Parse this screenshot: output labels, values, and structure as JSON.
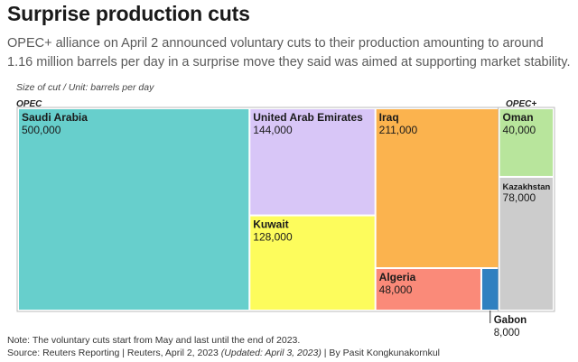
{
  "title": "Surprise production cuts",
  "subtitle": "OPEC+ alliance on April 2 announced voluntary cuts to their production amounting to around 1.16 million barrels per day in a surprise move they said was aimed at supporting market stability.",
  "unit_label": "Size of cut / Unit: barrels per day",
  "groups": {
    "opec": "OPEC",
    "opec_plus": "OPEC+"
  },
  "footer": {
    "note": "Note: The voluntary cuts start from May and last until the end of 2023.",
    "source_main": "Source: Reuters Reporting | Reuters, April 2, 2023 ",
    "source_updated": "(Updated: April 3, 2023)",
    "source_byline": " | By Pasit Kongkunakornkul"
  },
  "chart_data": {
    "type": "treemap",
    "title": "Surprise production cuts",
    "unit": "barrels per day",
    "groups": [
      {
        "name": "OPEC",
        "items": [
          {
            "name": "Saudi Arabia",
            "value": 500000,
            "label": "500,000",
            "color": "#67cfcc"
          },
          {
            "name": "United Arab Emirates",
            "value": 144000,
            "label": "144,000",
            "color": "#d8c6f7"
          },
          {
            "name": "Kuwait",
            "value": 128000,
            "label": "128,000",
            "color": "#fdfc5c"
          },
          {
            "name": "Iraq",
            "value": 211000,
            "label": "211,000",
            "color": "#fbb34e"
          },
          {
            "name": "Algeria",
            "value": 48000,
            "label": "48,000",
            "color": "#fa8a79"
          },
          {
            "name": "Gabon",
            "value": 8000,
            "label": "8,000",
            "color": "#3080c0"
          }
        ]
      },
      {
        "name": "OPEC+",
        "items": [
          {
            "name": "Oman",
            "value": 40000,
            "label": "40,000",
            "color": "#b8e59c"
          },
          {
            "name": "Kazakhstan",
            "value": 78000,
            "label": "78,000",
            "color": "#cccccc"
          }
        ]
      }
    ]
  }
}
